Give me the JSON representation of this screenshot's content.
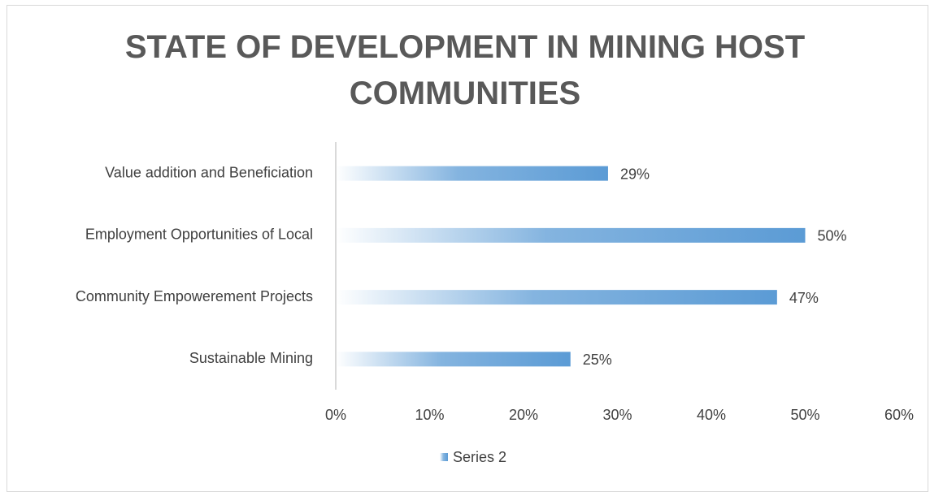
{
  "chart_data": {
    "type": "hbar",
    "title": "STATE OF DEVELOPMENT IN MINING HOST COMMUNITIES",
    "categories": [
      "Value addition and Beneficiation",
      "Employment Opportunities of Local",
      "Community Empowerement Projects",
      "Sustainable Mining"
    ],
    "series": [
      {
        "name": "Series 2",
        "color": "#5b9bd5",
        "values": [
          29,
          50,
          47,
          25
        ],
        "value_labels": [
          "29%",
          "50%",
          "47%",
          "25%"
        ]
      }
    ],
    "xlim": [
      0,
      60
    ],
    "xticks": [
      {
        "value": 0,
        "label": "0%"
      },
      {
        "value": 10,
        "label": "10%"
      },
      {
        "value": 20,
        "label": "20%"
      },
      {
        "value": 30,
        "label": "30%"
      },
      {
        "value": 40,
        "label": "40%"
      },
      {
        "value": 50,
        "label": "50%"
      },
      {
        "value": 60,
        "label": "60%"
      }
    ],
    "grid": false,
    "legend": "bottom"
  }
}
